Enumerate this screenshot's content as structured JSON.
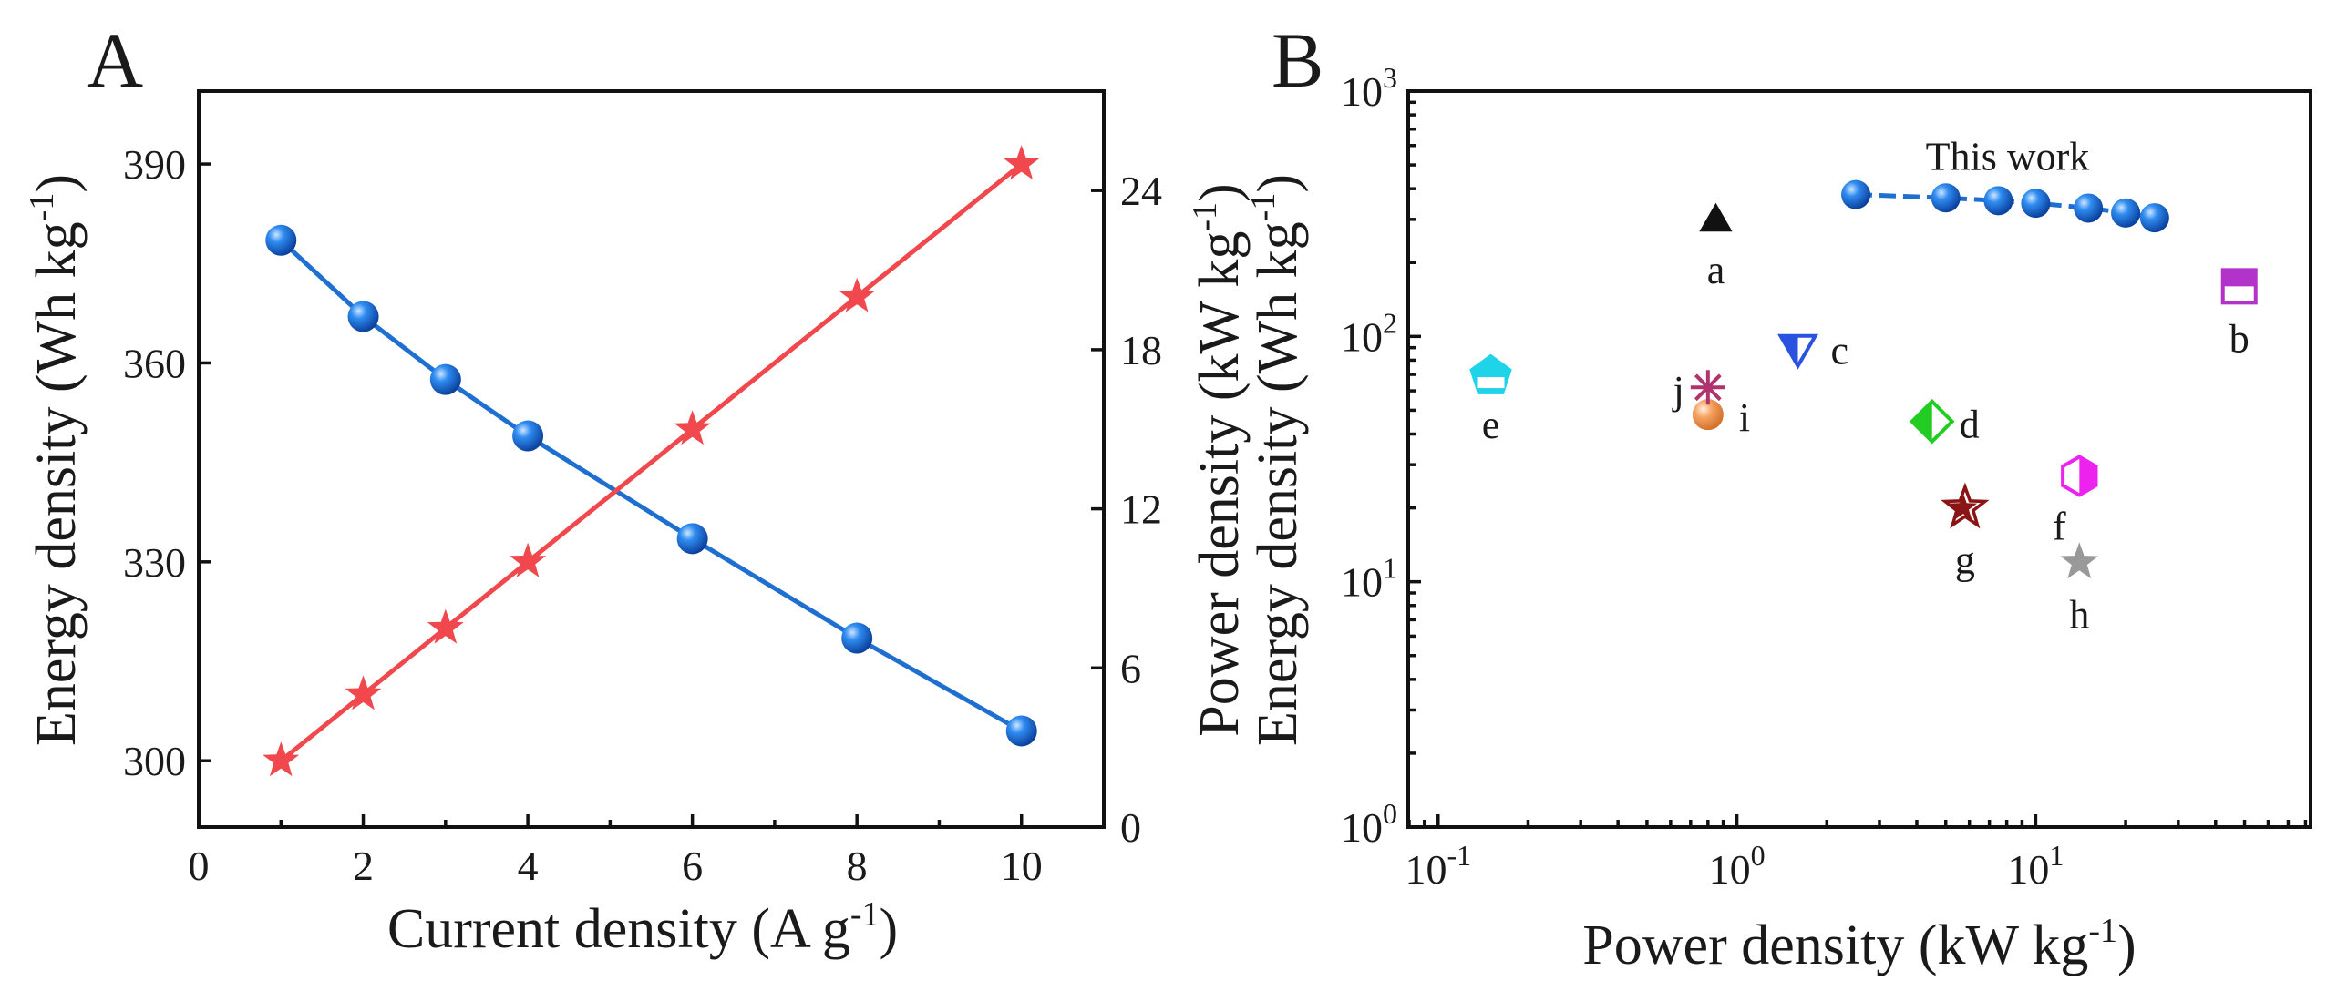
{
  "panels": {
    "A": {
      "letter": "A",
      "type": "line",
      "xlabel": "Current density (A g",
      "xlabel_sup": "-1",
      "xlabel_end": ")",
      "ylabel_left": "Energy density (Wh kg",
      "ylabel_left_sup": "-1",
      "ylabel_left_end": ")",
      "ylabel_right": "Power density (kW kg",
      "ylabel_right_sup": "-1",
      "ylabel_right_end": ")",
      "xlim": [
        0,
        11
      ],
      "xticks": [
        0,
        2,
        4,
        6,
        8,
        10
      ],
      "ylim_left": [
        290,
        401
      ],
      "yticks_left": [
        300,
        330,
        360,
        390
      ],
      "ylim_right": [
        0,
        27.75
      ],
      "yticks_right": [
        0,
        6,
        12,
        18,
        24
      ],
      "series": [
        {
          "name": "Energy density",
          "axis": "left",
          "marker": "sphere",
          "color": "#1f6fd1",
          "x": [
            1,
            2,
            3,
            4,
            6,
            8,
            10
          ],
          "y": [
            378.5,
            367,
            357.5,
            349,
            333.5,
            318.5,
            304.5
          ]
        },
        {
          "name": "Power density",
          "axis": "right",
          "marker": "star",
          "color": "#f0484d",
          "x": [
            1,
            2,
            3,
            4,
            6,
            8,
            10
          ],
          "y": [
            2.5,
            5.0,
            7.5,
            10.0,
            15.0,
            20.0,
            25.0
          ]
        }
      ]
    },
    "B": {
      "letter": "B",
      "type": "scatter",
      "xscale": "log",
      "yscale": "log",
      "xlabel": "Power density (kW kg",
      "xlabel_sup": "-1",
      "xlabel_end": ")",
      "ylabel": "Energy density (Wh kg",
      "ylabel_sup": "-1",
      "ylabel_end": ")",
      "xlim_log10": [
        -1.1,
        1.92
      ],
      "ylim_log10": [
        0,
        3
      ],
      "xticks": [
        {
          "base": "10",
          "exp": "-1",
          "log": -1
        },
        {
          "base": "10",
          "exp": "0",
          "log": 0
        },
        {
          "base": "10",
          "exp": "1",
          "log": 1
        }
      ],
      "yticks": [
        {
          "base": "10",
          "exp": "0",
          "log": 0
        },
        {
          "base": "10",
          "exp": "1",
          "log": 1
        },
        {
          "base": "10",
          "exp": "2",
          "log": 2
        },
        {
          "base": "10",
          "exp": "3",
          "log": 3
        }
      ],
      "this_work": {
        "label": "This work",
        "color": "#1f6fd1",
        "x": [
          2.5,
          5.0,
          7.5,
          10,
          15,
          20,
          25
        ],
        "y": [
          378.5,
          367,
          357.5,
          349,
          333.5,
          318.5,
          304.5
        ]
      },
      "references": [
        {
          "label": "a",
          "x": 0.85,
          "y": 300,
          "marker": "triangle-up",
          "color": "#111111"
        },
        {
          "label": "b",
          "x": 48,
          "y": 160,
          "marker": "half-square",
          "color": "#b233c9"
        },
        {
          "label": "c",
          "x": 1.6,
          "y": 90,
          "marker": "half-triangle-down",
          "color": "#2a52e0"
        },
        {
          "label": "d",
          "x": 4.5,
          "y": 45,
          "marker": "half-diamond",
          "color": "#22cc22"
        },
        {
          "label": "e",
          "x": 0.15,
          "y": 70,
          "marker": "half-pentagon",
          "color": "#1fd3e8"
        },
        {
          "label": "f",
          "x": 14,
          "y": 27,
          "marker": "half-hexagon",
          "color": "#ee22ee"
        },
        {
          "label": "g",
          "x": 5.8,
          "y": 20,
          "marker": "half-star",
          "color": "#8b1515"
        },
        {
          "label": "h",
          "x": 14,
          "y": 12,
          "marker": "star",
          "color": "#999999"
        },
        {
          "label": "i",
          "x": 0.8,
          "y": 48,
          "marker": "sphere",
          "color": "#f19a5c"
        },
        {
          "label": "j",
          "x": 0.8,
          "y": 62,
          "marker": "asterisk",
          "color": "#b0336e"
        }
      ]
    }
  }
}
